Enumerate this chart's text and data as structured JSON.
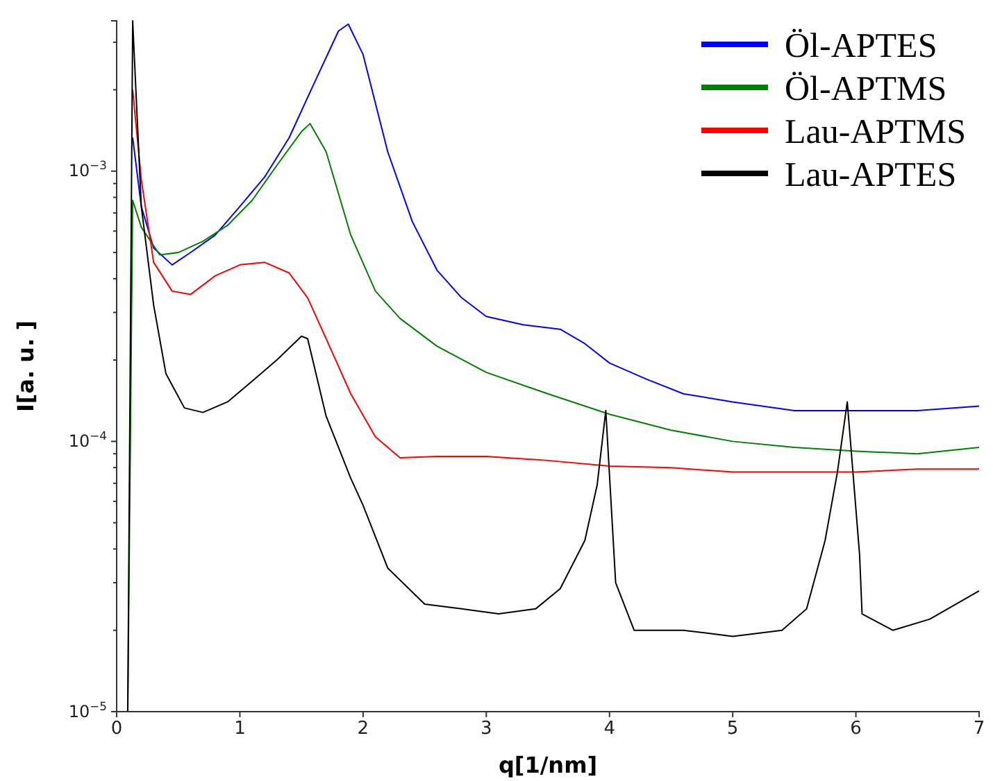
{
  "chart_data": {
    "type": "line",
    "xlabel": "q[1/nm]",
    "ylabel": "I[a. u. ]",
    "log": "y",
    "grid": false,
    "legend": "top right",
    "line_style": "solid",
    "marker": "none",
    "xlim": [
      0,
      7
    ],
    "xticks": [
      0,
      1,
      2,
      3,
      4,
      5,
      6,
      7
    ],
    "ylim": [
      1e-05,
      0.0036
    ],
    "yticks": [
      {
        "value": 1e-05,
        "label": "10$^{−5}$"
      },
      {
        "value": 2e-05,
        "label": null
      },
      {
        "value": 3e-05,
        "label": null
      },
      {
        "value": 4e-05,
        "label": null
      },
      {
        "value": 5e-05,
        "label": null
      },
      {
        "value": 6e-05,
        "label": null
      },
      {
        "value": 7e-05,
        "label": null
      },
      {
        "value": 8e-05,
        "label": null
      },
      {
        "value": 9e-05,
        "label": null
      },
      {
        "value": 0.0001,
        "label": "10$^{−4}$"
      },
      {
        "value": 0.0002,
        "label": null
      },
      {
        "value": 0.0003,
        "label": null
      },
      {
        "value": 0.0004,
        "label": null
      },
      {
        "value": 0.0005,
        "label": null
      },
      {
        "value": 0.0006,
        "label": null
      },
      {
        "value": 0.0007,
        "label": null
      },
      {
        "value": 0.0008,
        "label": null
      },
      {
        "value": 0.0009,
        "label": null
      },
      {
        "value": 0.001,
        "label": "10$^{−3}$"
      },
      {
        "value": 0.002,
        "label": null
      },
      {
        "value": 0.003,
        "label": null
      }
    ],
    "series": [
      {
        "name": "Öl-APTES",
        "color": "#0000ff",
        "x": [
          0.13,
          0.2,
          0.3,
          0.45,
          0.6,
          0.8,
          1.0,
          1.2,
          1.4,
          1.6,
          1.8,
          1.88,
          2.0,
          2.2,
          2.4,
          2.6,
          2.8,
          3.0,
          3.3,
          3.6,
          3.8,
          4.0,
          4.3,
          4.6,
          5.0,
          5.5,
          6.0,
          6.5,
          7.0
        ],
        "values": [
          0.00133,
          0.00074,
          0.00052,
          0.00045,
          0.0005,
          0.00058,
          0.00074,
          0.00095,
          0.00133,
          0.0021,
          0.0033,
          0.0035,
          0.0027,
          0.00118,
          0.00065,
          0.00043,
          0.00034,
          0.00029,
          0.00027,
          0.00026,
          0.00023,
          0.000195,
          0.00017,
          0.00015,
          0.00014,
          0.00013,
          0.00013,
          0.00013,
          0.000135
        ]
      },
      {
        "name": "Öl-APTMS",
        "color": "#008000",
        "x": [
          0.09,
          0.13,
          0.2,
          0.35,
          0.5,
          0.7,
          0.9,
          1.1,
          1.3,
          1.5,
          1.57,
          1.7,
          1.9,
          2.1,
          2.3,
          2.6,
          3.0,
          3.5,
          4.0,
          4.5,
          5.0,
          5.5,
          6.0,
          6.5,
          7.0
        ],
        "values": [
          1e-05,
          0.00078,
          0.00062,
          0.00049,
          0.0005,
          0.00055,
          0.00063,
          0.00078,
          0.00105,
          0.0014,
          0.0015,
          0.00118,
          0.00058,
          0.00036,
          0.000285,
          0.000225,
          0.00018,
          0.00015,
          0.000126,
          0.00011,
          0.0001,
          9.5e-05,
          9.2e-05,
          9e-05,
          9.5e-05
        ]
      },
      {
        "name": "Lau-APTMS",
        "color": "#ff0000",
        "x": [
          0.13,
          0.2,
          0.3,
          0.45,
          0.6,
          0.8,
          1.0,
          1.2,
          1.4,
          1.55,
          1.7,
          1.9,
          2.1,
          2.3,
          2.6,
          3.0,
          3.5,
          4.0,
          4.5,
          5.0,
          5.5,
          6.0,
          6.5,
          7.0
        ],
        "values": [
          0.002,
          0.00093,
          0.00046,
          0.00036,
          0.00035,
          0.00041,
          0.00045,
          0.00046,
          0.00042,
          0.00034,
          0.00024,
          0.00015,
          0.000104,
          8.7e-05,
          8.8e-05,
          8.8e-05,
          8.5e-05,
          8.1e-05,
          8e-05,
          7.7e-05,
          7.7e-05,
          7.7e-05,
          7.9e-05,
          7.9e-05
        ]
      },
      {
        "name": "Lau-APTES",
        "color": "#000000",
        "x": [
          0.09,
          0.13,
          0.2,
          0.3,
          0.4,
          0.55,
          0.7,
          0.9,
          1.1,
          1.3,
          1.5,
          1.55,
          1.7,
          1.9,
          2.0,
          2.2,
          2.5,
          2.8,
          3.1,
          3.4,
          3.6,
          3.8,
          3.9,
          3.97,
          4.05,
          4.2,
          4.6,
          5.0,
          5.4,
          5.6,
          5.75,
          5.85,
          5.93,
          6.03,
          6.05,
          6.3,
          6.6,
          7.0
        ],
        "values": [
          1e-05,
          0.0036,
          0.00074,
          0.00032,
          0.000178,
          0.000133,
          0.000128,
          0.00014,
          0.000167,
          0.0002,
          0.000245,
          0.00024,
          0.000124,
          7.3e-05,
          5.8e-05,
          3.4e-05,
          2.5e-05,
          2.4e-05,
          2.3e-05,
          2.4e-05,
          2.85e-05,
          4.3e-05,
          6.9e-05,
          0.00013,
          3e-05,
          2e-05,
          2e-05,
          1.9e-05,
          2e-05,
          2.4e-05,
          4.3e-05,
          7.7e-05,
          0.00014,
          3.8e-05,
          2.3e-05,
          2e-05,
          2.2e-05,
          2.8e-05
        ]
      }
    ]
  }
}
